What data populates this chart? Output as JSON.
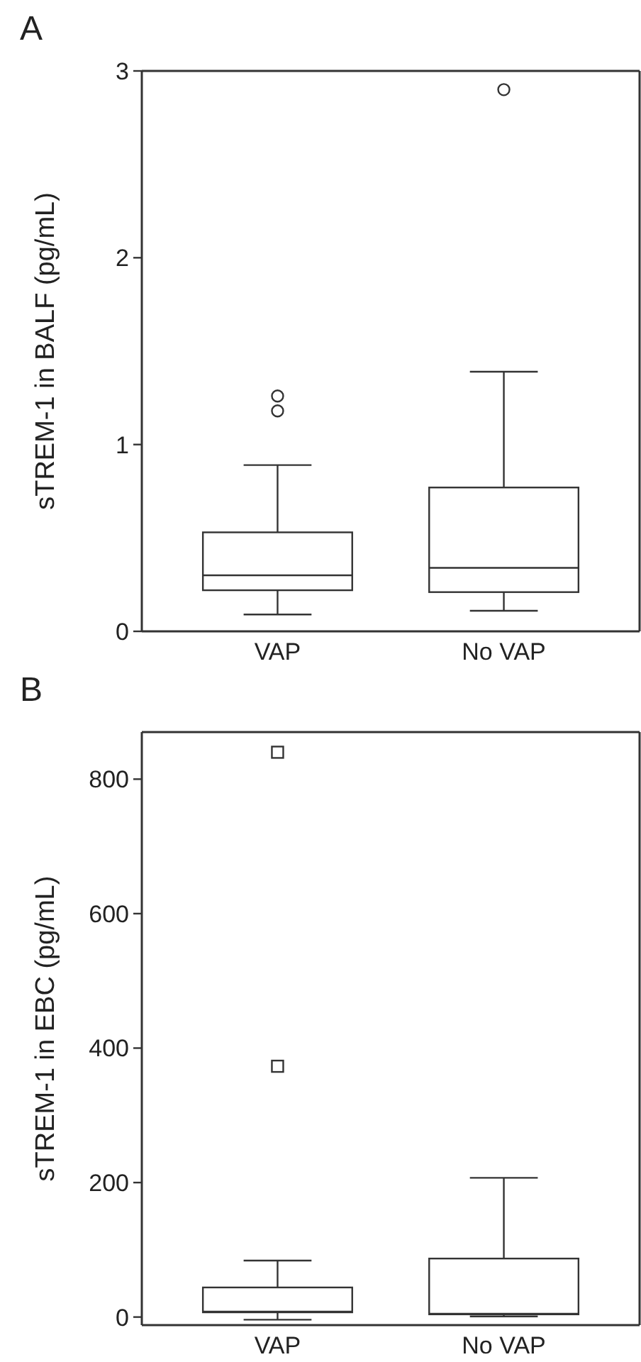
{
  "chart_data": [
    {
      "type": "box",
      "title": "A",
      "ylabel": "sTREM-1 in BALF (pg/mL)",
      "categories": [
        "VAP",
        "No VAP"
      ],
      "ylim": [
        0,
        3
      ],
      "yticks": [
        0,
        1,
        2,
        3
      ],
      "marker": "circle",
      "boxes": [
        {
          "low": 0.09,
          "q1": 0.22,
          "median": 0.3,
          "q3": 0.53,
          "high": 0.89,
          "outliers": [
            1.18,
            1.26
          ]
        },
        {
          "low": 0.11,
          "q1": 0.21,
          "median": 0.34,
          "q3": 0.77,
          "high": 1.39,
          "outliers": [
            2.9
          ]
        }
      ]
    },
    {
      "type": "box",
      "title": "B",
      "ylabel": "sTREM-1 in EBC (pg/mL)",
      "categories": [
        "VAP",
        "No VAP"
      ],
      "ylim": [
        -12,
        870
      ],
      "yticks": [
        0,
        200,
        400,
        600,
        800
      ],
      "marker": "square",
      "boxes": [
        {
          "low": -4,
          "q1": 7,
          "median": 8,
          "q3": 44,
          "high": 84,
          "outliers": [
            373,
            840
          ]
        },
        {
          "low": 1,
          "q1": 4,
          "median": 5,
          "q3": 87,
          "high": 207
        }
      ]
    }
  ]
}
